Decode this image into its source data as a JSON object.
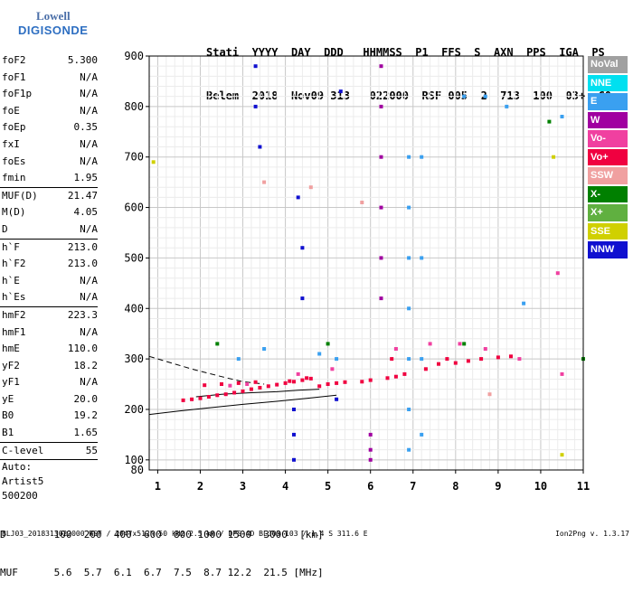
{
  "logo": {
    "line1": "Lowell",
    "line2": "DIGISONDE"
  },
  "header": {
    "labels": [
      "Stati",
      "YYYY",
      "DAY",
      "DDD",
      "HHMMSS",
      "P1",
      "FFS",
      "S",
      "AXN",
      "PPS",
      "IGA",
      "PS"
    ],
    "values": [
      "Belem",
      "2018",
      "Nov09",
      "313",
      "022000",
      "RSF",
      "005",
      "2",
      "713",
      "100",
      "03+",
      "C0"
    ]
  },
  "params": {
    "group1": [
      {
        "k": "foF2",
        "v": "5.300"
      },
      {
        "k": "foF1",
        "v": "N/A"
      },
      {
        "k": "foF1p",
        "v": "N/A"
      },
      {
        "k": "foE",
        "v": "N/A"
      },
      {
        "k": "foEp",
        "v": "0.35"
      },
      {
        "k": "fxI",
        "v": "N/A"
      },
      {
        "k": "foEs",
        "v": "N/A"
      },
      {
        "k": "fmin",
        "v": "1.95"
      }
    ],
    "group2": [
      {
        "k": "MUF(D)",
        "v": "21.47"
      },
      {
        "k": "M(D)",
        "v": "4.05"
      },
      {
        "k": "D",
        "v": "N/A"
      }
    ],
    "group3": [
      {
        "k": "h`F",
        "v": "213.0"
      },
      {
        "k": "h`F2",
        "v": "213.0"
      },
      {
        "k": "h`E",
        "v": "N/A"
      },
      {
        "k": "h`Es",
        "v": "N/A"
      }
    ],
    "group4": [
      {
        "k": "hmF2",
        "v": "223.3"
      },
      {
        "k": "hmF1",
        "v": "N/A"
      },
      {
        "k": "hmE",
        "v": "110.0"
      },
      {
        "k": "yF2",
        "v": "18.2"
      },
      {
        "k": "yF1",
        "v": "N/A"
      },
      {
        "k": "yE",
        "v": "20.0"
      },
      {
        "k": "B0",
        "v": "19.2"
      },
      {
        "k": "B1",
        "v": "1.65"
      }
    ],
    "group5": [
      {
        "k": "C-level",
        "v": "55"
      }
    ],
    "auto_label": "Auto:",
    "artist": "Artist5",
    "artist_version": "500200"
  },
  "legend": [
    {
      "label": "NoVal",
      "color": "#a0a0a0"
    },
    {
      "label": "NNE",
      "color": "#00e0f0"
    },
    {
      "label": "E",
      "color": "#3aa0f0"
    },
    {
      "label": "W",
      "color": "#a000a0"
    },
    {
      "label": "Vo-",
      "color": "#f040a0"
    },
    {
      "label": "Vo+",
      "color": "#f00040"
    },
    {
      "label": "SSW",
      "color": "#f0a0a0"
    },
    {
      "label": "X-",
      "color": "#008000"
    },
    {
      "label": "X+",
      "color": "#60b040"
    },
    {
      "label": "SSE",
      "color": "#d0d000"
    },
    {
      "label": "NNW",
      "color": "#1010d0"
    }
  ],
  "range_table": {
    "d_label": "D",
    "d_values": [
      "100",
      "200",
      "400",
      "600",
      "800",
      "1000",
      "1500",
      "3000",
      "[km]"
    ],
    "muf_label": "MUF",
    "muf_values": [
      "5.6",
      "5.7",
      "6.1",
      "6.7",
      "7.5",
      "8.7",
      "12.2",
      "21.5",
      "[MHz]"
    ]
  },
  "footer": {
    "left": "BLJ03_2018313022000.RSF / 204fx512h 50 kHz 2.5 km / DPS-4D BLJ03 103 / 1.4 S 311.6 E",
    "right": "Ion2Png v. 1.3.17"
  },
  "chart_data": {
    "type": "scatter",
    "title": "",
    "xlabel": "",
    "ylabel": "",
    "xlim": [
      0.8,
      11
    ],
    "ylim": [
      80,
      900
    ],
    "x_ticks": [
      1,
      2,
      3,
      4,
      5,
      6,
      7,
      8,
      9,
      10,
      11
    ],
    "y_ticks": [
      100,
      200,
      300,
      400,
      500,
      600,
      700,
      800,
      900
    ],
    "y_tick_labels": [
      "100",
      "200",
      "300",
      "400",
      "500",
      "600",
      "700",
      "800",
      "900"
    ],
    "y_bottom_label": "80",
    "grid": true,
    "legend_position": "right",
    "series": [
      {
        "color": "#f00040",
        "points": [
          [
            1.6,
            218
          ],
          [
            1.8,
            220
          ],
          [
            2.0,
            222
          ],
          [
            2.2,
            225
          ],
          [
            2.4,
            228
          ],
          [
            2.6,
            230
          ],
          [
            2.8,
            233
          ],
          [
            3.0,
            236
          ],
          [
            3.2,
            240
          ],
          [
            3.4,
            243
          ],
          [
            3.6,
            246
          ],
          [
            3.8,
            249
          ],
          [
            4.0,
            252
          ],
          [
            4.2,
            255
          ],
          [
            4.4,
            258
          ],
          [
            4.6,
            261
          ],
          [
            4.8,
            246
          ],
          [
            5.0,
            250
          ],
          [
            5.2,
            252
          ],
          [
            5.4,
            254
          ],
          [
            5.8,
            255
          ],
          [
            6.0,
            258
          ],
          [
            6.4,
            262
          ],
          [
            6.6,
            265
          ],
          [
            6.8,
            270
          ],
          [
            7.3,
            280
          ],
          [
            7.6,
            290
          ],
          [
            8.0,
            292
          ],
          [
            8.3,
            296
          ],
          [
            8.6,
            300
          ],
          [
            9.0,
            303
          ],
          [
            9.3,
            305
          ],
          [
            2.1,
            248
          ],
          [
            2.5,
            250
          ],
          [
            2.9,
            252
          ],
          [
            3.3,
            254
          ],
          [
            4.1,
            256
          ],
          [
            4.5,
            262
          ],
          [
            6.5,
            300
          ],
          [
            7.8,
            300
          ]
        ]
      },
      {
        "color": "#f040a0",
        "points": [
          [
            2.7,
            247
          ],
          [
            3.1,
            250
          ],
          [
            4.3,
            270
          ],
          [
            5.1,
            280
          ],
          [
            6.6,
            320
          ],
          [
            7.4,
            330
          ],
          [
            8.1,
            330
          ],
          [
            8.7,
            320
          ],
          [
            9.5,
            300
          ],
          [
            10.4,
            470
          ],
          [
            10.5,
            270
          ]
        ]
      },
      {
        "color": "#3aa0f0",
        "points": [
          [
            2.9,
            300
          ],
          [
            3.5,
            320
          ],
          [
            4.8,
            310
          ],
          [
            5.2,
            300
          ],
          [
            6.9,
            700
          ],
          [
            6.9,
            600
          ],
          [
            6.9,
            500
          ],
          [
            6.9,
            400
          ],
          [
            6.9,
            300
          ],
          [
            6.9,
            200
          ],
          [
            6.9,
            120
          ],
          [
            7.2,
            700
          ],
          [
            7.2,
            500
          ],
          [
            7.2,
            300
          ],
          [
            7.2,
            150
          ],
          [
            8.2,
            820
          ],
          [
            8.7,
            820
          ],
          [
            9.2,
            800
          ],
          [
            9.6,
            410
          ],
          [
            10.5,
            780
          ]
        ]
      },
      {
        "color": "#a000a0",
        "points": [
          [
            6.25,
            880
          ],
          [
            6.25,
            800
          ],
          [
            6.25,
            700
          ],
          [
            6.25,
            600
          ],
          [
            6.25,
            500
          ],
          [
            6.25,
            420
          ],
          [
            6.0,
            150
          ],
          [
            6.0,
            120
          ],
          [
            6.0,
            100
          ]
        ]
      },
      {
        "color": "#1010d0",
        "points": [
          [
            3.3,
            880
          ],
          [
            3.3,
            800
          ],
          [
            3.4,
            720
          ],
          [
            4.2,
            200
          ],
          [
            4.2,
            150
          ],
          [
            4.2,
            100
          ],
          [
            4.3,
            620
          ],
          [
            4.4,
            420
          ],
          [
            4.4,
            520
          ],
          [
            5.2,
            220
          ],
          [
            5.3,
            830
          ]
        ]
      },
      {
        "color": "#008000",
        "points": [
          [
            2.4,
            330
          ],
          [
            5.0,
            330
          ],
          [
            8.2,
            330
          ],
          [
            10.2,
            770
          ],
          [
            11.0,
            300
          ]
        ]
      },
      {
        "color": "#d0d000",
        "points": [
          [
            0.9,
            690
          ],
          [
            10.3,
            700
          ],
          [
            10.5,
            110
          ]
        ]
      },
      {
        "color": "#f0a0a0",
        "points": [
          [
            3.5,
            650
          ],
          [
            4.6,
            640
          ],
          [
            8.8,
            230
          ],
          [
            5.8,
            610
          ]
        ]
      }
    ],
    "curves": [
      {
        "style": "solid",
        "x": [
          0.8,
          1.5,
          2.2,
          3.0,
          3.8,
          4.5,
          5.2
        ],
        "y": [
          190,
          197,
          203,
          210,
          216,
          222,
          228
        ]
      },
      {
        "style": "solid",
        "x": [
          1.9,
          2.5,
          3.2,
          3.8,
          4.3,
          4.8
        ],
        "y": [
          225,
          230,
          233,
          235,
          238,
          240
        ]
      },
      {
        "style": "dashed",
        "x": [
          0.8,
          1.2,
          1.8,
          2.5,
          3.0,
          3.5
        ],
        "y": [
          305,
          295,
          280,
          265,
          255,
          250
        ]
      }
    ]
  }
}
